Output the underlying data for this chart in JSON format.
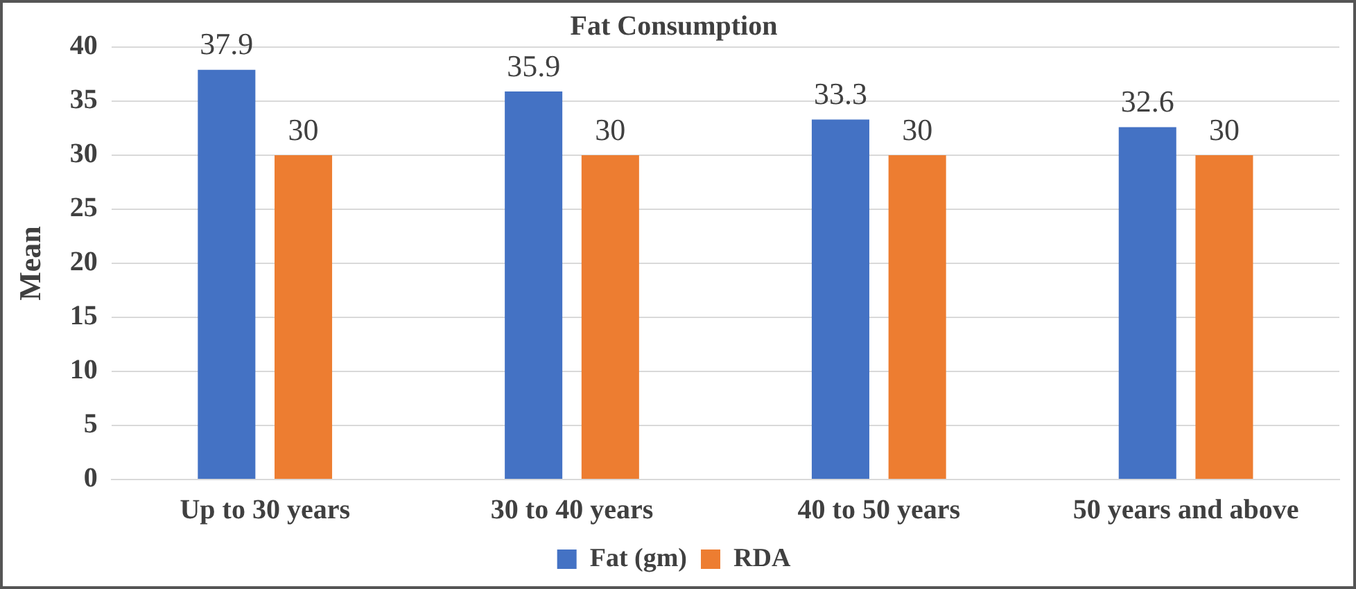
{
  "chart_data": {
    "type": "bar",
    "title": "Fat Consumption",
    "ylabel": "Mean",
    "categories": [
      "Up to 30 years",
      "30 to 40 years",
      "40 to 50 years",
      "50 years and above"
    ],
    "series": [
      {
        "name": "Fat (gm)",
        "color": "#4472c4",
        "values": [
          37.9,
          35.9,
          33.3,
          32.6
        ]
      },
      {
        "name": "RDA",
        "color": "#ed7d31",
        "values": [
          30,
          30,
          30,
          30
        ]
      }
    ],
    "ylim": [
      0,
      40
    ],
    "yticks": [
      0,
      5,
      10,
      15,
      20,
      25,
      30,
      35,
      40
    ],
    "grid": "y",
    "legend": "bottom",
    "data_labels": true
  }
}
